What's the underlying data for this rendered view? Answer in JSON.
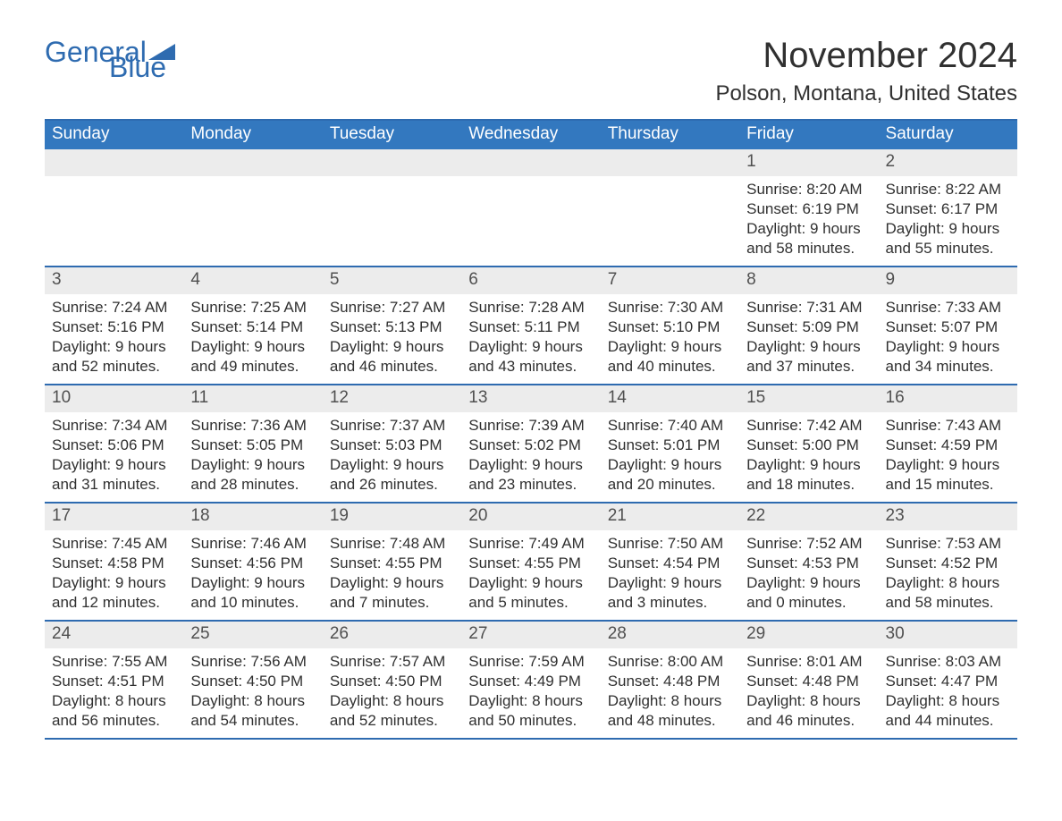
{
  "brand": {
    "part1": "General",
    "part2": "Blue"
  },
  "title": "November 2024",
  "location": "Polson, Montana, United States",
  "colors": {
    "accent": "#2e6bb0",
    "header_bg": "#3378bf",
    "daynum_bg": "#ececec",
    "text": "#303030",
    "page_bg": "#ffffff"
  },
  "fontsize": {
    "title": 40,
    "subtitle": 24,
    "weekday": 19,
    "daynum": 19,
    "body": 17
  },
  "weekdays": [
    "Sunday",
    "Monday",
    "Tuesday",
    "Wednesday",
    "Thursday",
    "Friday",
    "Saturday"
  ],
  "weeks": [
    [
      {
        "empty": true
      },
      {
        "empty": true
      },
      {
        "empty": true
      },
      {
        "empty": true
      },
      {
        "empty": true
      },
      {
        "n": "1",
        "sunrise": "Sunrise: 8:20 AM",
        "sunset": "Sunset: 6:19 PM",
        "d1": "Daylight: 9 hours",
        "d2": "and 58 minutes."
      },
      {
        "n": "2",
        "sunrise": "Sunrise: 8:22 AM",
        "sunset": "Sunset: 6:17 PM",
        "d1": "Daylight: 9 hours",
        "d2": "and 55 minutes."
      }
    ],
    [
      {
        "n": "3",
        "sunrise": "Sunrise: 7:24 AM",
        "sunset": "Sunset: 5:16 PM",
        "d1": "Daylight: 9 hours",
        "d2": "and 52 minutes."
      },
      {
        "n": "4",
        "sunrise": "Sunrise: 7:25 AM",
        "sunset": "Sunset: 5:14 PM",
        "d1": "Daylight: 9 hours",
        "d2": "and 49 minutes."
      },
      {
        "n": "5",
        "sunrise": "Sunrise: 7:27 AM",
        "sunset": "Sunset: 5:13 PM",
        "d1": "Daylight: 9 hours",
        "d2": "and 46 minutes."
      },
      {
        "n": "6",
        "sunrise": "Sunrise: 7:28 AM",
        "sunset": "Sunset: 5:11 PM",
        "d1": "Daylight: 9 hours",
        "d2": "and 43 minutes."
      },
      {
        "n": "7",
        "sunrise": "Sunrise: 7:30 AM",
        "sunset": "Sunset: 5:10 PM",
        "d1": "Daylight: 9 hours",
        "d2": "and 40 minutes."
      },
      {
        "n": "8",
        "sunrise": "Sunrise: 7:31 AM",
        "sunset": "Sunset: 5:09 PM",
        "d1": "Daylight: 9 hours",
        "d2": "and 37 minutes."
      },
      {
        "n": "9",
        "sunrise": "Sunrise: 7:33 AM",
        "sunset": "Sunset: 5:07 PM",
        "d1": "Daylight: 9 hours",
        "d2": "and 34 minutes."
      }
    ],
    [
      {
        "n": "10",
        "sunrise": "Sunrise: 7:34 AM",
        "sunset": "Sunset: 5:06 PM",
        "d1": "Daylight: 9 hours",
        "d2": "and 31 minutes."
      },
      {
        "n": "11",
        "sunrise": "Sunrise: 7:36 AM",
        "sunset": "Sunset: 5:05 PM",
        "d1": "Daylight: 9 hours",
        "d2": "and 28 minutes."
      },
      {
        "n": "12",
        "sunrise": "Sunrise: 7:37 AM",
        "sunset": "Sunset: 5:03 PM",
        "d1": "Daylight: 9 hours",
        "d2": "and 26 minutes."
      },
      {
        "n": "13",
        "sunrise": "Sunrise: 7:39 AM",
        "sunset": "Sunset: 5:02 PM",
        "d1": "Daylight: 9 hours",
        "d2": "and 23 minutes."
      },
      {
        "n": "14",
        "sunrise": "Sunrise: 7:40 AM",
        "sunset": "Sunset: 5:01 PM",
        "d1": "Daylight: 9 hours",
        "d2": "and 20 minutes."
      },
      {
        "n": "15",
        "sunrise": "Sunrise: 7:42 AM",
        "sunset": "Sunset: 5:00 PM",
        "d1": "Daylight: 9 hours",
        "d2": "and 18 minutes."
      },
      {
        "n": "16",
        "sunrise": "Sunrise: 7:43 AM",
        "sunset": "Sunset: 4:59 PM",
        "d1": "Daylight: 9 hours",
        "d2": "and 15 minutes."
      }
    ],
    [
      {
        "n": "17",
        "sunrise": "Sunrise: 7:45 AM",
        "sunset": "Sunset: 4:58 PM",
        "d1": "Daylight: 9 hours",
        "d2": "and 12 minutes."
      },
      {
        "n": "18",
        "sunrise": "Sunrise: 7:46 AM",
        "sunset": "Sunset: 4:56 PM",
        "d1": "Daylight: 9 hours",
        "d2": "and 10 minutes."
      },
      {
        "n": "19",
        "sunrise": "Sunrise: 7:48 AM",
        "sunset": "Sunset: 4:55 PM",
        "d1": "Daylight: 9 hours",
        "d2": "and 7 minutes."
      },
      {
        "n": "20",
        "sunrise": "Sunrise: 7:49 AM",
        "sunset": "Sunset: 4:55 PM",
        "d1": "Daylight: 9 hours",
        "d2": "and 5 minutes."
      },
      {
        "n": "21",
        "sunrise": "Sunrise: 7:50 AM",
        "sunset": "Sunset: 4:54 PM",
        "d1": "Daylight: 9 hours",
        "d2": "and 3 minutes."
      },
      {
        "n": "22",
        "sunrise": "Sunrise: 7:52 AM",
        "sunset": "Sunset: 4:53 PM",
        "d1": "Daylight: 9 hours",
        "d2": "and 0 minutes."
      },
      {
        "n": "23",
        "sunrise": "Sunrise: 7:53 AM",
        "sunset": "Sunset: 4:52 PM",
        "d1": "Daylight: 8 hours",
        "d2": "and 58 minutes."
      }
    ],
    [
      {
        "n": "24",
        "sunrise": "Sunrise: 7:55 AM",
        "sunset": "Sunset: 4:51 PM",
        "d1": "Daylight: 8 hours",
        "d2": "and 56 minutes."
      },
      {
        "n": "25",
        "sunrise": "Sunrise: 7:56 AM",
        "sunset": "Sunset: 4:50 PM",
        "d1": "Daylight: 8 hours",
        "d2": "and 54 minutes."
      },
      {
        "n": "26",
        "sunrise": "Sunrise: 7:57 AM",
        "sunset": "Sunset: 4:50 PM",
        "d1": "Daylight: 8 hours",
        "d2": "and 52 minutes."
      },
      {
        "n": "27",
        "sunrise": "Sunrise: 7:59 AM",
        "sunset": "Sunset: 4:49 PM",
        "d1": "Daylight: 8 hours",
        "d2": "and 50 minutes."
      },
      {
        "n": "28",
        "sunrise": "Sunrise: 8:00 AM",
        "sunset": "Sunset: 4:48 PM",
        "d1": "Daylight: 8 hours",
        "d2": "and 48 minutes."
      },
      {
        "n": "29",
        "sunrise": "Sunrise: 8:01 AM",
        "sunset": "Sunset: 4:48 PM",
        "d1": "Daylight: 8 hours",
        "d2": "and 46 minutes."
      },
      {
        "n": "30",
        "sunrise": "Sunrise: 8:03 AM",
        "sunset": "Sunset: 4:47 PM",
        "d1": "Daylight: 8 hours",
        "d2": "and 44 minutes."
      }
    ]
  ]
}
